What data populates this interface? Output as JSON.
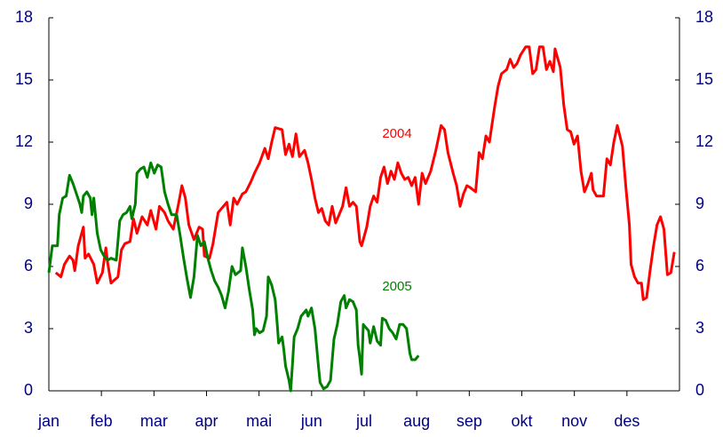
{
  "chart_data": {
    "type": "line",
    "categories": [
      "jan",
      "feb",
      "mar",
      "apr",
      "mai",
      "jun",
      "jul",
      "aug",
      "sep",
      "okt",
      "nov",
      "des"
    ],
    "xlim": [
      0,
      365
    ],
    "ylim": [
      0,
      18
    ],
    "yticks": [
      0,
      3,
      6,
      9,
      12,
      15,
      18
    ],
    "y2lim": [
      0,
      18
    ],
    "y2ticks": [
      0,
      3,
      6,
      9,
      12,
      15,
      18
    ],
    "annotations": [
      "2004",
      "2005"
    ],
    "series": [
      {
        "name": "2004",
        "color": "#ff0000",
        "x": [
          4,
          7,
          9,
          12,
          14,
          15,
          17,
          20,
          21,
          23,
          26,
          28,
          31,
          33,
          34,
          36,
          40,
          42,
          44,
          47,
          49,
          51,
          54,
          57,
          59,
          62,
          64,
          67,
          69,
          72,
          75,
          77,
          79,
          81,
          84,
          87,
          89,
          90,
          93,
          95,
          98,
          101,
          103,
          105,
          107,
          109,
          112,
          114,
          117,
          119,
          122,
          125,
          127,
          129,
          131,
          135,
          137,
          139,
          141,
          143,
          145,
          148,
          150,
          152,
          154,
          156,
          158,
          160,
          162,
          164,
          166,
          168,
          170,
          172,
          174,
          176,
          178,
          180,
          181,
          184,
          186,
          188,
          190,
          192,
          194,
          196,
          198,
          200,
          202,
          204,
          206,
          208,
          210,
          212,
          214,
          216,
          218,
          221,
          224,
          227,
          229,
          231,
          234,
          236,
          238,
          240,
          242,
          244,
          247,
          249,
          251,
          253,
          255,
          258,
          260,
          262,
          265,
          267,
          269,
          271,
          273,
          276,
          278,
          280,
          282,
          284,
          286,
          288,
          290,
          292,
          293,
          296,
          298,
          300,
          302,
          304,
          306,
          308,
          310,
          312,
          314,
          315,
          317,
          319,
          321,
          323,
          325,
          327,
          329,
          332,
          334,
          336,
          337,
          339,
          341,
          343,
          344,
          346,
          348,
          350,
          352,
          354,
          356,
          358,
          360,
          362
        ],
        "values": [
          5.7,
          5.5,
          6.1,
          6.5,
          6.3,
          5.8,
          7.0,
          7.9,
          6.4,
          6.6,
          6.1,
          5.2,
          5.7,
          6.9,
          6.2,
          5.2,
          5.5,
          6.8,
          7.1,
          7.2,
          8.3,
          7.6,
          8.4,
          8.0,
          8.7,
          7.8,
          8.9,
          8.6,
          8.2,
          7.8,
          9.0,
          9.9,
          9.3,
          8.0,
          7.3,
          7.9,
          7.8,
          6.5,
          6.4,
          7.1,
          8.6,
          8.9,
          9.1,
          8.0,
          9.3,
          9.0,
          9.5,
          9.6,
          10.1,
          10.5,
          11.0,
          11.7,
          11.2,
          12.0,
          12.7,
          12.6,
          11.4,
          11.9,
          11.3,
          12.4,
          11.3,
          11.6,
          11.0,
          10.2,
          9.3,
          8.6,
          8.8,
          8.2,
          8.0,
          8.9,
          8.1,
          8.5,
          8.9,
          9.8,
          8.9,
          9.1,
          8.9,
          7.2,
          7.0,
          7.9,
          8.9,
          9.4,
          9.1,
          10.3,
          10.8,
          10.0,
          10.6,
          10.2,
          11.0,
          10.5,
          10.2,
          10.3,
          9.9,
          10.3,
          9.0,
          10.5,
          10.0,
          10.6,
          11.6,
          12.8,
          12.6,
          11.5,
          10.5,
          9.9,
          8.9,
          9.5,
          9.9,
          9.8,
          9.6,
          11.5,
          11.2,
          12.3,
          12.0,
          13.7,
          14.7,
          15.3,
          15.5,
          16.0,
          15.6,
          15.8,
          16.2,
          16.6,
          16.6,
          15.3,
          15.5,
          16.6,
          16.6,
          15.5,
          15.9,
          15.4,
          16.5,
          15.6,
          13.8,
          12.6,
          12.5,
          11.9,
          12.3,
          10.6,
          9.6,
          10.0,
          10.5,
          9.7,
          9.4,
          9.4,
          9.4,
          11.2,
          10.9,
          12.0,
          12.8,
          11.8,
          9.8,
          8.0,
          6.1,
          5.5,
          5.2,
          5.2,
          4.4,
          4.5,
          5.8,
          7.0,
          8.0,
          8.4,
          7.8,
          5.6,
          5.7,
          6.7
        ]
      },
      {
        "name": "2005",
        "color": "#008000",
        "x": [
          0,
          2,
          5,
          6,
          8,
          10,
          12,
          14,
          16,
          18,
          19,
          20,
          22,
          24,
          25,
          26,
          28,
          30,
          32,
          34,
          36,
          39,
          41,
          43,
          45,
          47,
          48,
          50,
          51,
          53,
          55,
          57,
          59,
          61,
          63,
          65,
          67,
          69,
          71,
          74,
          76,
          78,
          80,
          82,
          84,
          86,
          88,
          90,
          92,
          94,
          96,
          98,
          100,
          102,
          104,
          106,
          108,
          111,
          112,
          114,
          116,
          118,
          119,
          120,
          122,
          124,
          126,
          127,
          129,
          131,
          132,
          133,
          135,
          136,
          137,
          139,
          140,
          141,
          142,
          144,
          146,
          149,
          150,
          152,
          154,
          156,
          157,
          159,
          161,
          163,
          165,
          167,
          169,
          171,
          172,
          174,
          176,
          178,
          179,
          180,
          181,
          182,
          185,
          186,
          188,
          190,
          192,
          193,
          195,
          197,
          199,
          201,
          203,
          205,
          207,
          209,
          210,
          212,
          214
        ],
        "values": [
          5.7,
          7.0,
          7.0,
          8.5,
          9.3,
          9.4,
          10.4,
          10.0,
          9.5,
          9.0,
          8.6,
          9.4,
          9.6,
          9.3,
          8.5,
          9.3,
          7.6,
          6.8,
          6.5,
          6.3,
          6.4,
          6.3,
          8.2,
          8.5,
          8.6,
          8.9,
          8.3,
          9.0,
          10.5,
          10.7,
          10.8,
          10.3,
          11.0,
          10.5,
          10.9,
          10.8,
          9.6,
          9.0,
          8.5,
          8.5,
          7.5,
          6.4,
          5.4,
          4.5,
          5.5,
          7.5,
          7.0,
          7.2,
          6.4,
          5.8,
          5.3,
          5.0,
          4.6,
          4.0,
          4.8,
          6.0,
          5.6,
          5.8,
          6.9,
          6.0,
          4.9,
          3.9,
          2.7,
          3.0,
          2.8,
          2.9,
          3.6,
          5.5,
          5.1,
          4.4,
          3.4,
          2.3,
          2.6,
          2.0,
          1.2,
          0.5,
          0.0,
          1.3,
          2.6,
          3.0,
          3.6,
          3.9,
          3.6,
          4.0,
          3.0,
          1.2,
          0.4,
          0.1,
          0.2,
          0.5,
          2.5,
          3.2,
          4.3,
          4.6,
          4.0,
          4.4,
          4.3,
          3.9,
          2.2,
          1.6,
          0.8,
          3.2,
          2.9,
          2.3,
          3.1,
          2.4,
          2.2,
          3.5,
          3.4,
          3.0,
          2.8,
          2.5,
          3.2,
          3.2,
          3.0,
          1.8,
          1.5,
          1.5,
          1.7
        ]
      }
    ]
  }
}
